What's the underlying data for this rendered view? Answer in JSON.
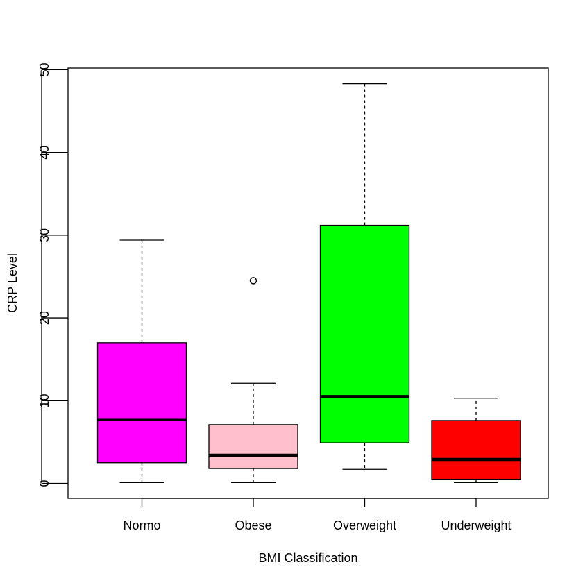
{
  "chart_data": {
    "type": "boxplot",
    "title": "",
    "xlabel": "BMI Classification",
    "ylabel": "CRP Level",
    "ylim": [
      -1.8,
      50.2
    ],
    "yticks": [
      0,
      10,
      20,
      30,
      40,
      50
    ],
    "grid": false,
    "categories": [
      "Normo",
      "Obese",
      "Overweight",
      "Underweight"
    ],
    "boxes": [
      {
        "label": "Normo",
        "color": "#ff00ff",
        "whisker_low": 0.1,
        "q1": 2.5,
        "median": 7.7,
        "q3": 17.0,
        "whisker_high": 29.4,
        "outliers": []
      },
      {
        "label": "Obese",
        "color": "#ffc0cb",
        "whisker_low": 0.1,
        "q1": 1.8,
        "median": 3.4,
        "q3": 7.1,
        "whisker_high": 12.1,
        "outliers": [
          24.5
        ]
      },
      {
        "label": "Overweight",
        "color": "#00ff00",
        "whisker_low": 1.7,
        "q1": 4.9,
        "median": 10.5,
        "q3": 31.2,
        "whisker_high": 48.3,
        "outliers": []
      },
      {
        "label": "Underweight",
        "color": "#ff0000",
        "whisker_low": 0.1,
        "q1": 0.5,
        "median": 2.9,
        "q3": 7.6,
        "whisker_high": 10.3,
        "outliers": []
      }
    ]
  }
}
